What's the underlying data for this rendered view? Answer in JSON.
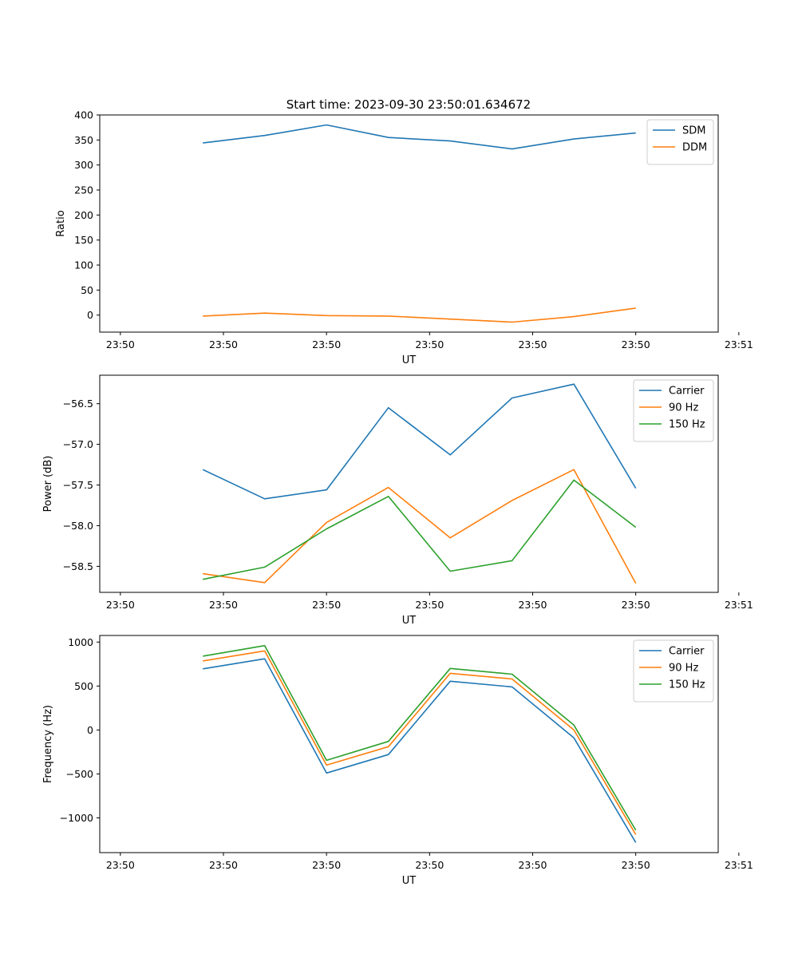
{
  "title": "Start time: 2023-09-30 23:50:01.634672",
  "colors": {
    "blue": "#1f77b4",
    "orange": "#ff7f0e",
    "green": "#2ca02c",
    "axis": "#000000"
  },
  "chart_data": [
    {
      "type": "line",
      "xlabel": "UT",
      "ylabel": "Ratio",
      "x": [
        0.4,
        0.7,
        1.0,
        1.3,
        1.6,
        1.9,
        2.2,
        2.5
      ],
      "xlim": [
        -0.1,
        2.9
      ],
      "xticks": [
        0,
        0.5,
        1.0,
        1.5,
        2.0,
        2.5,
        3.0
      ],
      "xticklabels": [
        "23:50",
        "23:50",
        "23:50",
        "23:50",
        "23:50",
        "23:50",
        "23:51"
      ],
      "ylim": [
        -34,
        400
      ],
      "yticks": [
        0,
        50,
        100,
        150,
        200,
        250,
        300,
        350,
        400
      ],
      "yticklabels": [
        "0",
        "50",
        "100",
        "150",
        "200",
        "250",
        "300",
        "350",
        "400"
      ],
      "legend": "top-right",
      "series": [
        {
          "name": "SDM",
          "color": "#1f77b4",
          "values": [
            344,
            359,
            380,
            355,
            348,
            332,
            352,
            364
          ]
        },
        {
          "name": "DDM",
          "color": "#ff7f0e",
          "values": [
            -2,
            4,
            -1,
            -2,
            -8,
            -14,
            -3,
            14
          ]
        }
      ]
    },
    {
      "type": "line",
      "xlabel": "UT",
      "ylabel": "Power (dB)",
      "x": [
        0.4,
        0.7,
        1.0,
        1.3,
        1.6,
        1.9,
        2.2,
        2.5
      ],
      "xlim": [
        -0.1,
        2.9
      ],
      "xticks": [
        0,
        0.5,
        1.0,
        1.5,
        2.0,
        2.5,
        3.0
      ],
      "xticklabels": [
        "23:50",
        "23:50",
        "23:50",
        "23:50",
        "23:50",
        "23:50",
        "23:51"
      ],
      "ylim": [
        -58.82,
        -56.15
      ],
      "yticks": [
        -58.5,
        -58.0,
        -57.5,
        -57.0,
        -56.5
      ],
      "yticklabels": [
        "−58.5",
        "−58.0",
        "−57.5",
        "−57.0",
        "−56.5"
      ],
      "legend": "top-right",
      "series": [
        {
          "name": "Carrier",
          "color": "#1f77b4",
          "values": [
            -57.31,
            -57.67,
            -57.56,
            -56.55,
            -57.13,
            -56.43,
            -56.26,
            -57.54
          ]
        },
        {
          "name": "90 Hz",
          "color": "#ff7f0e",
          "values": [
            -58.59,
            -58.7,
            -57.96,
            -57.53,
            -58.15,
            -57.69,
            -57.31,
            -58.71
          ]
        },
        {
          "name": "150 Hz",
          "color": "#2ca02c",
          "values": [
            -58.66,
            -58.51,
            -58.04,
            -57.64,
            -58.56,
            -58.43,
            -57.44,
            -58.02
          ]
        }
      ]
    },
    {
      "type": "line",
      "xlabel": "UT",
      "ylabel": "Frequency (Hz)",
      "x": [
        0.4,
        0.7,
        1.0,
        1.3,
        1.6,
        1.9,
        2.2,
        2.5
      ],
      "xlim": [
        -0.1,
        2.9
      ],
      "xticks": [
        0,
        0.5,
        1.0,
        1.5,
        2.0,
        2.5,
        3.0
      ],
      "xticklabels": [
        "23:50",
        "23:50",
        "23:50",
        "23:50",
        "23:50",
        "23:50",
        "23:51"
      ],
      "ylim": [
        -1395,
        1075
      ],
      "yticks": [
        -1000,
        -500,
        0,
        500,
        1000
      ],
      "yticklabels": [
        "−1000",
        "−500",
        "0",
        "500",
        "1000"
      ],
      "legend": "top-right",
      "series": [
        {
          "name": "Carrier",
          "color": "#1f77b4",
          "values": [
            695,
            810,
            -490,
            -280,
            555,
            490,
            -90,
            -1280
          ]
        },
        {
          "name": "90 Hz",
          "color": "#ff7f0e",
          "values": [
            785,
            900,
            -400,
            -190,
            645,
            580,
            0,
            -1190
          ]
        },
        {
          "name": "150 Hz",
          "color": "#2ca02c",
          "values": [
            840,
            960,
            -345,
            -130,
            700,
            635,
            55,
            -1140
          ]
        }
      ]
    }
  ]
}
